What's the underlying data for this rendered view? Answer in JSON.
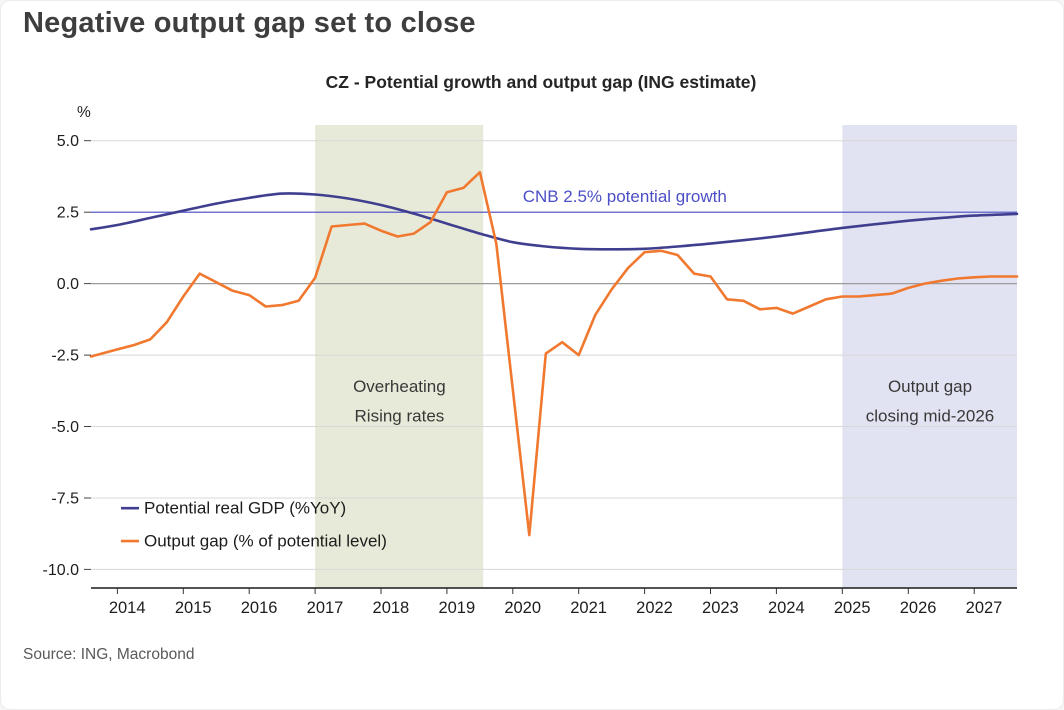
{
  "page": {
    "title": "Negative output gap set to close",
    "source": "Source: ING, Macrobond"
  },
  "chart_data": {
    "type": "line",
    "title": "CZ - Potential growth and output gap (ING estimate)",
    "ylabel": "%",
    "xlabel": "",
    "ylim": [
      -10.65,
      5.55
    ],
    "yticks": [
      5.0,
      2.5,
      0.0,
      -2.5,
      -5.0,
      -7.5,
      -10.0
    ],
    "xlim": [
      2013.6,
      2027.65
    ],
    "xticks": [
      2014,
      2015,
      2016,
      2017,
      2018,
      2019,
      2020,
      2021,
      2022,
      2023,
      2024,
      2025,
      2026,
      2027
    ],
    "grid": "horizontal",
    "legend_position": "inside-bottom-left",
    "reference_line": {
      "value": 2.5,
      "label": "CNB 2.5% potential growth",
      "color": "#4b4ec5",
      "label_x": 2020.15,
      "label_y": 2.86
    },
    "bands": [
      {
        "from": 2017.0,
        "to": 2019.55,
        "color": "#e8ead9",
        "label_lines": [
          "Overheating",
          "Rising rates"
        ],
        "label_x": 2018.28,
        "label_y": -3.8
      },
      {
        "from": 2025.0,
        "to": 2027.65,
        "color": "#e2e3f2",
        "label_lines": [
          "Output gap",
          "closing mid-2026"
        ],
        "label_x": 2026.33,
        "label_y": -3.8
      }
    ],
    "series": [
      {
        "name": "Potential real GDP (%YoY)",
        "color": "#403f8f",
        "smooth": true,
        "x": [
          2013.6,
          2014,
          2014.5,
          2015,
          2015.5,
          2016,
          2016.5,
          2017,
          2017.5,
          2018,
          2018.5,
          2019,
          2019.5,
          2020,
          2020.5,
          2021,
          2021.5,
          2022,
          2022.5,
          2023,
          2023.5,
          2024,
          2024.5,
          2025,
          2025.5,
          2026,
          2026.5,
          2027,
          2027.65
        ],
        "values": [
          1.9,
          2.05,
          2.3,
          2.55,
          2.8,
          3.0,
          3.15,
          3.12,
          2.98,
          2.75,
          2.45,
          2.1,
          1.75,
          1.45,
          1.3,
          1.22,
          1.2,
          1.22,
          1.3,
          1.4,
          1.52,
          1.65,
          1.8,
          1.95,
          2.08,
          2.2,
          2.3,
          2.38,
          2.44
        ]
      },
      {
        "name": "Output gap (% of potential level)",
        "color": "#f0792f",
        "smooth": false,
        "x": [
          2013.6,
          2014,
          2014.25,
          2014.5,
          2014.75,
          2015,
          2015.25,
          2015.5,
          2015.75,
          2016,
          2016.25,
          2016.5,
          2016.75,
          2017,
          2017.25,
          2017.5,
          2017.75,
          2018,
          2018.25,
          2018.5,
          2018.75,
          2019,
          2019.25,
          2019.5,
          2019.75,
          2020.25,
          2020.5,
          2020.75,
          2021,
          2021.25,
          2021.5,
          2021.75,
          2022,
          2022.25,
          2022.5,
          2022.75,
          2023,
          2023.25,
          2023.5,
          2023.75,
          2024,
          2024.25,
          2024.5,
          2024.75,
          2025,
          2025.25,
          2025.5,
          2025.75,
          2026,
          2026.25,
          2026.5,
          2026.75,
          2027,
          2027.25,
          2027.65
        ],
        "values": [
          -2.55,
          -2.3,
          -2.15,
          -1.95,
          -1.35,
          -0.45,
          0.35,
          0.05,
          -0.25,
          -0.4,
          -0.8,
          -0.75,
          -0.6,
          0.2,
          2.0,
          2.05,
          2.1,
          1.85,
          1.65,
          1.75,
          2.15,
          3.2,
          3.35,
          3.9,
          1.4,
          -8.8,
          -2.45,
          -2.05,
          -2.5,
          -1.1,
          -0.2,
          0.55,
          1.1,
          1.15,
          1.0,
          0.35,
          0.25,
          -0.55,
          -0.6,
          -0.9,
          -0.85,
          -1.05,
          -0.8,
          -0.55,
          -0.45,
          -0.45,
          -0.4,
          -0.35,
          -0.15,
          0.0,
          0.1,
          0.18,
          0.22,
          0.25,
          0.25
        ]
      }
    ]
  }
}
